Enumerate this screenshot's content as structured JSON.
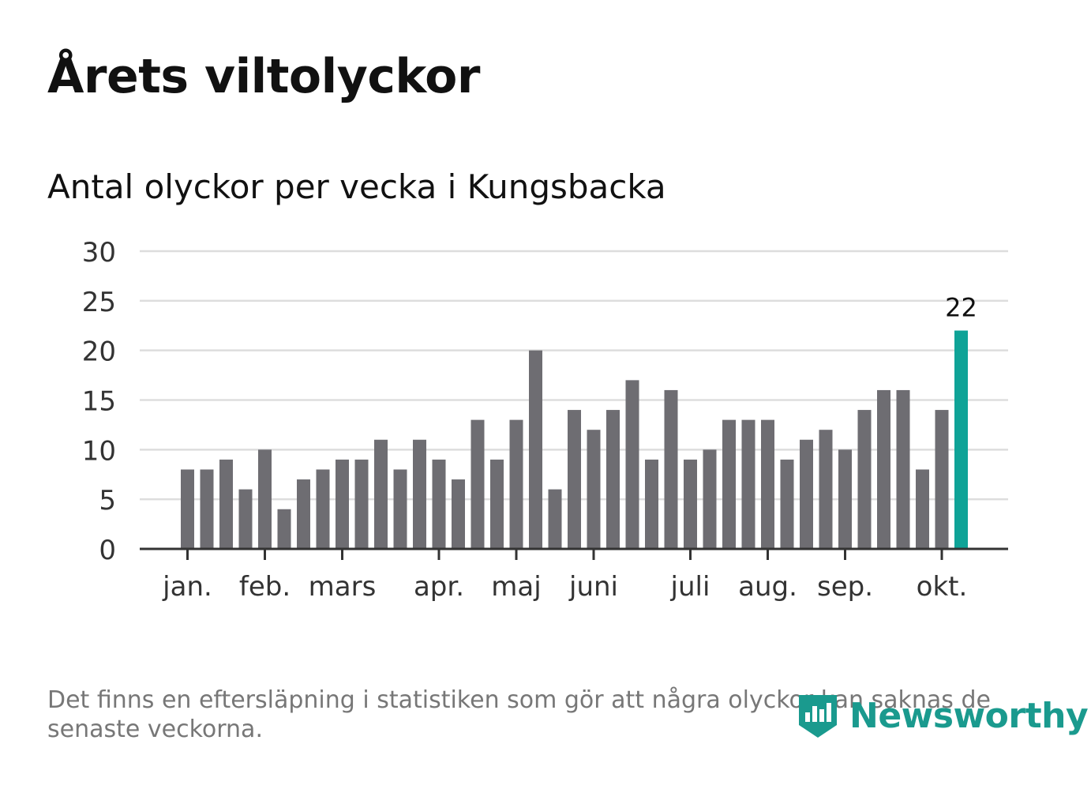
{
  "header": {
    "title": "Årets viltolyckor",
    "subtitle": "Antal olyckor per vecka i Kungsbacka"
  },
  "footer": {
    "note": "Det finns en eftersläpning i statistiken som gör att några olyckor kan saknas de senaste veckorna.",
    "brand": "Newsworthy"
  },
  "colors": {
    "bar": "#6e6d72",
    "highlight": "#0fa397",
    "grid": "#dddddd",
    "axis": "#333333"
  },
  "chart_data": {
    "type": "bar",
    "title": "Antal olyckor per vecka i Kungsbacka",
    "xlabel": "",
    "ylabel": "",
    "ylim": [
      0,
      30
    ],
    "yticks": [
      0,
      5,
      10,
      15,
      20,
      25,
      30
    ],
    "grid": true,
    "weeks": [
      1,
      2,
      3,
      4,
      5,
      6,
      7,
      8,
      9,
      10,
      11,
      12,
      13,
      14,
      15,
      16,
      17,
      18,
      19,
      20,
      21,
      22,
      23,
      24,
      25,
      26,
      27,
      28,
      29,
      30,
      31,
      32,
      33,
      34,
      35,
      36,
      37,
      38,
      39,
      40,
      41
    ],
    "values": [
      8,
      8,
      9,
      6,
      10,
      4,
      7,
      8,
      9,
      9,
      11,
      8,
      11,
      9,
      7,
      13,
      9,
      13,
      20,
      6,
      14,
      12,
      14,
      17,
      9,
      16,
      9,
      10,
      13,
      13,
      13,
      9,
      11,
      12,
      10,
      14,
      16,
      16,
      8,
      14,
      22
    ],
    "highlight_index": 40,
    "highlight_label": "22",
    "month_labels": [
      {
        "label": "jan.",
        "week": 1
      },
      {
        "label": "feb.",
        "week": 5
      },
      {
        "label": "mars",
        "week": 9
      },
      {
        "label": "apr.",
        "week": 14
      },
      {
        "label": "maj",
        "week": 18
      },
      {
        "label": "juni",
        "week": 22
      },
      {
        "label": "juli",
        "week": 27
      },
      {
        "label": "aug.",
        "week": 31
      },
      {
        "label": "sep.",
        "week": 35
      },
      {
        "label": "okt.",
        "week": 40
      }
    ]
  }
}
